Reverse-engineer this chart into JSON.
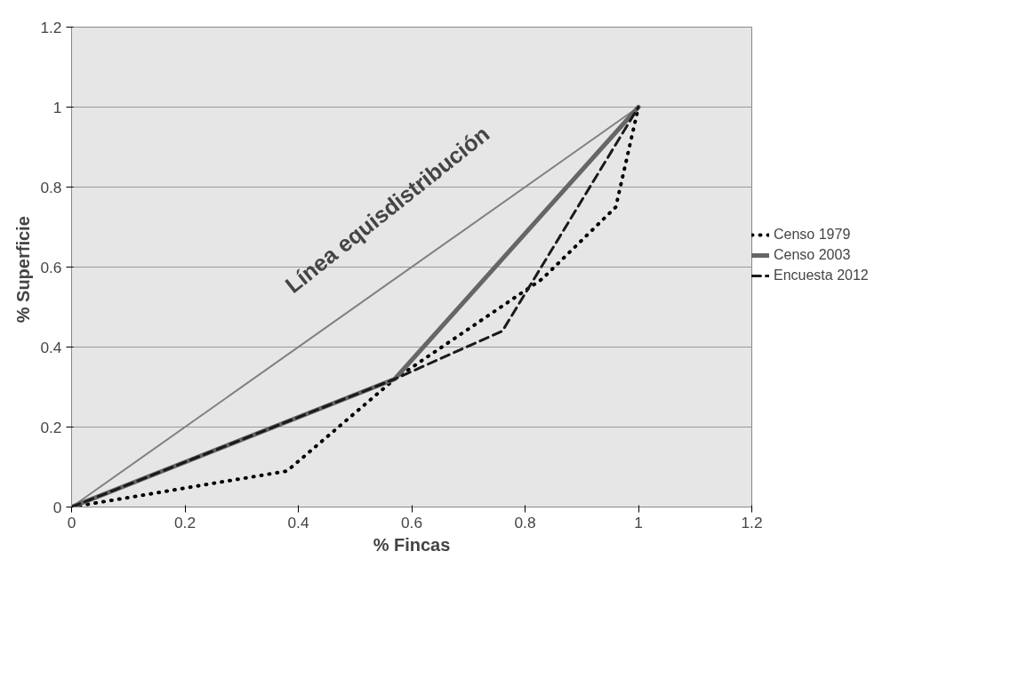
{
  "chart_data": {
    "type": "line",
    "xlabel": "% Fincas",
    "ylabel": "%  Superficie",
    "xlim": [
      0,
      1.2
    ],
    "ylim": [
      0,
      1.2
    ],
    "xticks": [
      0,
      0.2,
      0.4,
      0.6,
      0.8,
      1,
      1.2
    ],
    "yticks": [
      0,
      0.2,
      0.4,
      0.6,
      0.8,
      1,
      1.2
    ],
    "grid": "y",
    "legend": "right",
    "marker": "none",
    "series": [
      {
        "x": [
          0,
          1
        ],
        "values": [
          0,
          1
        ],
        "color": "#808080",
        "line_style": "solid"
      },
      {
        "name": "Censo 1979",
        "x": [
          0,
          0.38,
          0.57,
          0.83,
          0.96,
          1
        ],
        "values": [
          0,
          0.09,
          0.32,
          0.57,
          0.75,
          1
        ],
        "color": "#000000",
        "line_style": "dotted"
      },
      {
        "name": "Censo 2003",
        "x": [
          0,
          0.57,
          1
        ],
        "values": [
          0,
          0.32,
          1
        ],
        "color": "#666666",
        "line_style": "solid"
      },
      {
        "name": "Encuesta 2012",
        "x": [
          0,
          0.57,
          0.76,
          1
        ],
        "values": [
          0,
          0.32,
          0.44,
          1
        ],
        "color": "#1a1a1a",
        "line_style": "dashed"
      }
    ],
    "annotations": [
      "Línea equisdistribución"
    ]
  }
}
